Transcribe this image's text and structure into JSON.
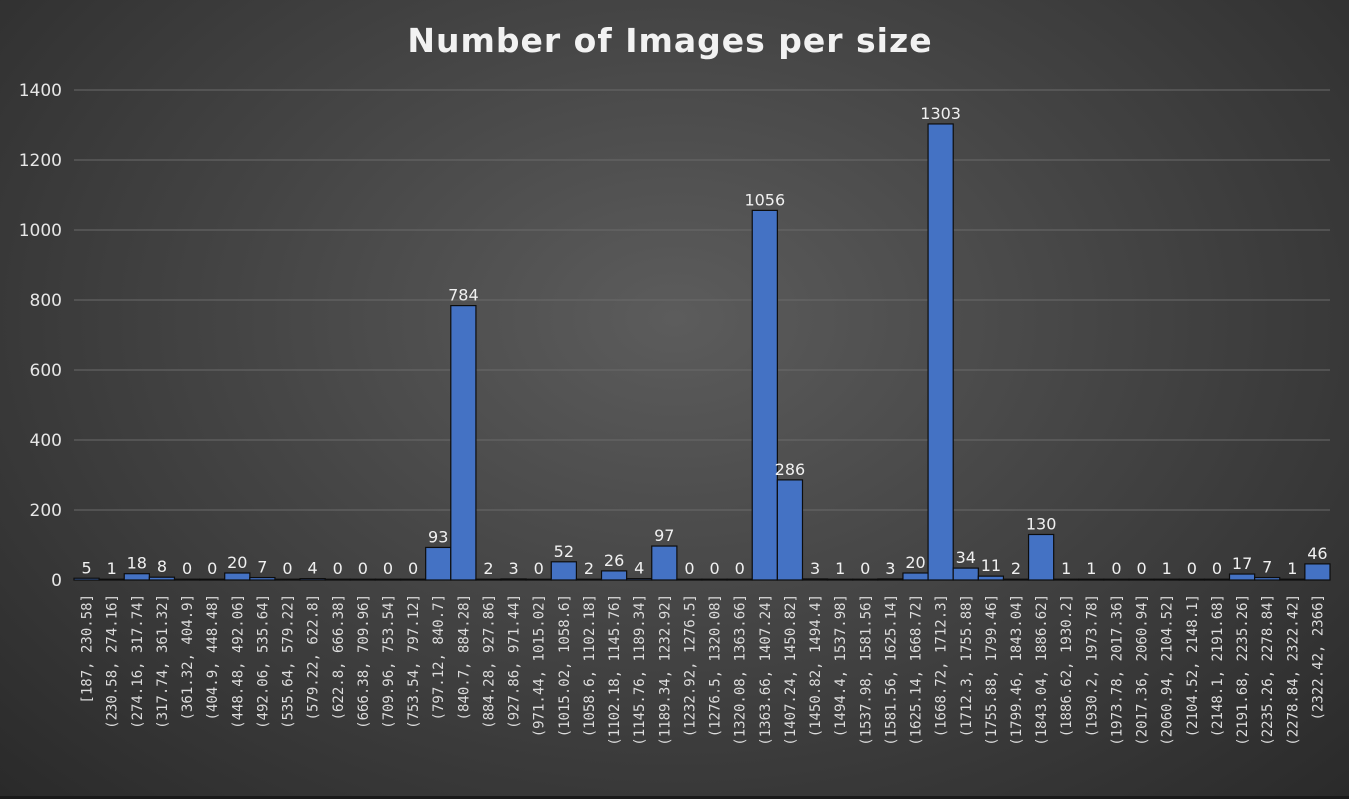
{
  "chart_data": {
    "type": "bar",
    "title": "Number of Images per size",
    "xlabel": "",
    "ylabel": "",
    "ylim": [
      0,
      1400
    ],
    "yticks": [
      0,
      200,
      400,
      600,
      800,
      1000,
      1200,
      1400
    ],
    "grid": true,
    "legend": "none",
    "bar_color": "#4472c4",
    "background_color": "#404040",
    "categories": [
      "[187, 230.58]",
      "(230.58, 274.16]",
      "(274.16, 317.74]",
      "(317.74, 361.32]",
      "(361.32, 404.9]",
      "(404.9, 448.48]",
      "(448.48, 492.06]",
      "(492.06, 535.64]",
      "(535.64, 579.22]",
      "(579.22, 622.8]",
      "(622.8, 666.38]",
      "(666.38, 709.96]",
      "(709.96, 753.54]",
      "(753.54, 797.12]",
      "(797.12, 840.7]",
      "(840.7, 884.28]",
      "(884.28, 927.86]",
      "(927.86, 971.44]",
      "(971.44, 1015.02]",
      "(1015.02, 1058.6]",
      "(1058.6, 1102.18]",
      "(1102.18, 1145.76]",
      "(1145.76, 1189.34]",
      "(1189.34, 1232.92]",
      "(1232.92, 1276.5]",
      "(1276.5, 1320.08]",
      "(1320.08, 1363.66]",
      "(1363.66, 1407.24]",
      "(1407.24, 1450.82]",
      "(1450.82, 1494.4]",
      "(1494.4, 1537.98]",
      "(1537.98, 1581.56]",
      "(1581.56, 1625.14]",
      "(1625.14, 1668.72]",
      "(1668.72, 1712.3]",
      "(1712.3, 1755.88]",
      "(1755.88, 1799.46]",
      "(1799.46, 1843.04]",
      "(1843.04, 1886.62]",
      "(1886.62, 1930.2]",
      "(1930.2, 1973.78]",
      "(1973.78, 2017.36]",
      "(2017.36, 2060.94]",
      "(2060.94, 2104.52]",
      "(2104.52, 2148.1]",
      "(2148.1, 2191.68]",
      "(2191.68, 2235.26]",
      "(2235.26, 2278.84]",
      "(2278.84, 2322.42]",
      "(2322.42, 2366]"
    ],
    "values": [
      5,
      1,
      18,
      8,
      0,
      0,
      20,
      7,
      0,
      4,
      0,
      0,
      0,
      0,
      93,
      784,
      2,
      3,
      0,
      52,
      2,
      26,
      4,
      97,
      0,
      0,
      0,
      1056,
      286,
      3,
      1,
      0,
      3,
      20,
      1303,
      34,
      11,
      2,
      130,
      1,
      1,
      0,
      0,
      1,
      0,
      0,
      17,
      7,
      1,
      46
    ]
  }
}
